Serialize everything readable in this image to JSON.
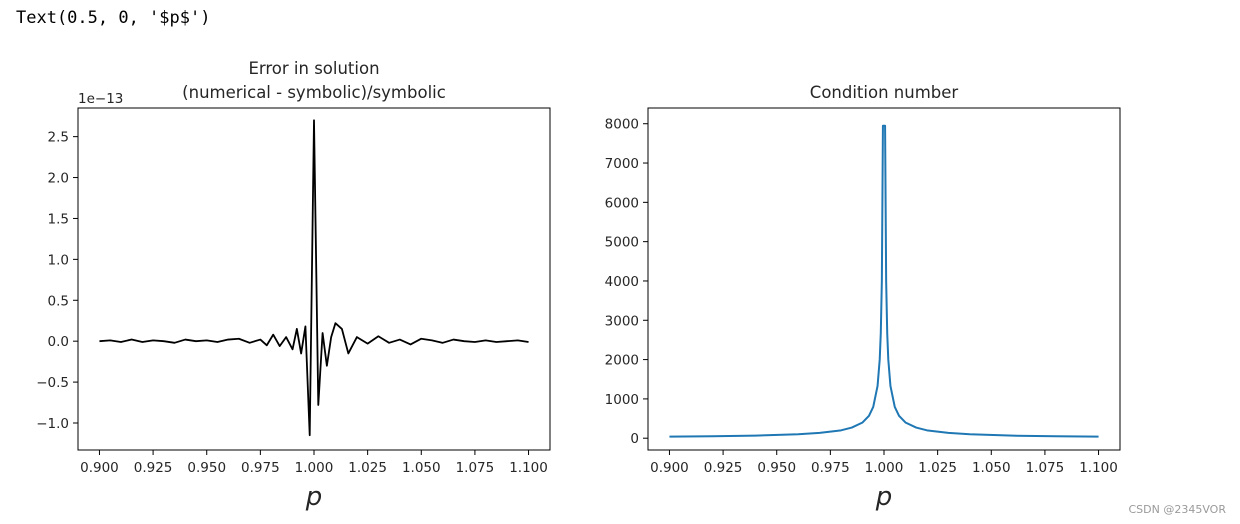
{
  "cell_output": "Text(0.5, 0, '$p$')",
  "watermark": "CSDN @2345VOR",
  "chart_data": [
    {
      "type": "line",
      "title_lines": [
        "Error in solution",
        "(numerical - symbolic)/symbolic"
      ],
      "xlabel": "p",
      "ylabel": "",
      "offset_text": "1e−13",
      "xlim": [
        0.89,
        1.11
      ],
      "ylim": [
        -1.33,
        2.85
      ],
      "xticks": [
        0.9,
        0.925,
        0.95,
        0.975,
        1.0,
        1.025,
        1.05,
        1.075,
        1.1
      ],
      "xtick_labels": [
        "0.900",
        "0.925",
        "0.950",
        "0.975",
        "1.000",
        "1.025",
        "1.050",
        "1.075",
        "1.100"
      ],
      "yticks": [
        -1.0,
        -0.5,
        0.0,
        0.5,
        1.0,
        1.5,
        2.0,
        2.5
      ],
      "ytick_labels": [
        "−1.0",
        "−0.5",
        "0.0",
        "0.5",
        "1.0",
        "1.5",
        "2.0",
        "2.5"
      ],
      "grid": false,
      "color": "#000000",
      "series": [
        {
          "x": [
            0.9,
            0.905,
            0.91,
            0.915,
            0.92,
            0.925,
            0.93,
            0.935,
            0.94,
            0.945,
            0.95,
            0.955,
            0.96,
            0.965,
            0.97,
            0.975,
            0.978,
            0.981,
            0.984,
            0.987,
            0.99,
            0.992,
            0.994,
            0.996,
            0.998,
            1.0,
            1.002,
            1.004,
            1.006,
            1.008,
            1.01,
            1.013,
            1.016,
            1.02,
            1.025,
            1.03,
            1.035,
            1.04,
            1.045,
            1.05,
            1.055,
            1.06,
            1.065,
            1.07,
            1.075,
            1.08,
            1.085,
            1.09,
            1.095,
            1.1
          ],
          "y": [
            0.0,
            0.01,
            -0.01,
            0.02,
            -0.01,
            0.01,
            0.0,
            -0.02,
            0.02,
            0.0,
            0.01,
            -0.01,
            0.02,
            0.03,
            -0.02,
            0.02,
            -0.05,
            0.08,
            -0.06,
            0.05,
            -0.1,
            0.15,
            -0.15,
            0.18,
            -1.15,
            2.7,
            -0.78,
            0.1,
            -0.3,
            0.05,
            0.22,
            0.15,
            -0.15,
            0.05,
            -0.03,
            0.06,
            -0.02,
            0.02,
            -0.04,
            0.03,
            0.01,
            -0.02,
            0.02,
            0.0,
            -0.01,
            0.01,
            -0.01,
            0.0,
            0.01,
            -0.01
          ]
        }
      ]
    },
    {
      "type": "line",
      "title_lines": [
        "Condition number"
      ],
      "xlabel": "p",
      "ylabel": "",
      "xlim": [
        0.89,
        1.11
      ],
      "ylim": [
        -300,
        8400
      ],
      "xticks": [
        0.9,
        0.925,
        0.95,
        0.975,
        1.0,
        1.025,
        1.05,
        1.075,
        1.1
      ],
      "xtick_labels": [
        "0.900",
        "0.925",
        "0.950",
        "0.975",
        "1.000",
        "1.025",
        "1.050",
        "1.075",
        "1.100"
      ],
      "yticks": [
        0,
        1000,
        2000,
        3000,
        4000,
        5000,
        6000,
        7000,
        8000
      ],
      "ytick_labels": [
        "0",
        "1000",
        "2000",
        "3000",
        "4000",
        "5000",
        "6000",
        "7000",
        "8000"
      ],
      "grid": false,
      "color": "#1f77b4",
      "series": [
        {
          "x": [
            0.9,
            0.92,
            0.94,
            0.96,
            0.97,
            0.98,
            0.985,
            0.99,
            0.993,
            0.995,
            0.997,
            0.998,
            0.9985,
            0.999,
            0.9995,
            1.0,
            1.0005,
            1.001,
            1.0015,
            1.002,
            1.003,
            1.005,
            1.007,
            1.01,
            1.015,
            1.02,
            1.03,
            1.04,
            1.06,
            1.08,
            1.1
          ],
          "y": [
            40,
            50,
            65,
            100,
            135,
            200,
            270,
            400,
            570,
            800,
            1330,
            2000,
            2670,
            4000,
            7950,
            7950,
            7950,
            4000,
            2670,
            2000,
            1330,
            800,
            570,
            400,
            270,
            200,
            135,
            100,
            65,
            50,
            40
          ]
        }
      ]
    }
  ]
}
